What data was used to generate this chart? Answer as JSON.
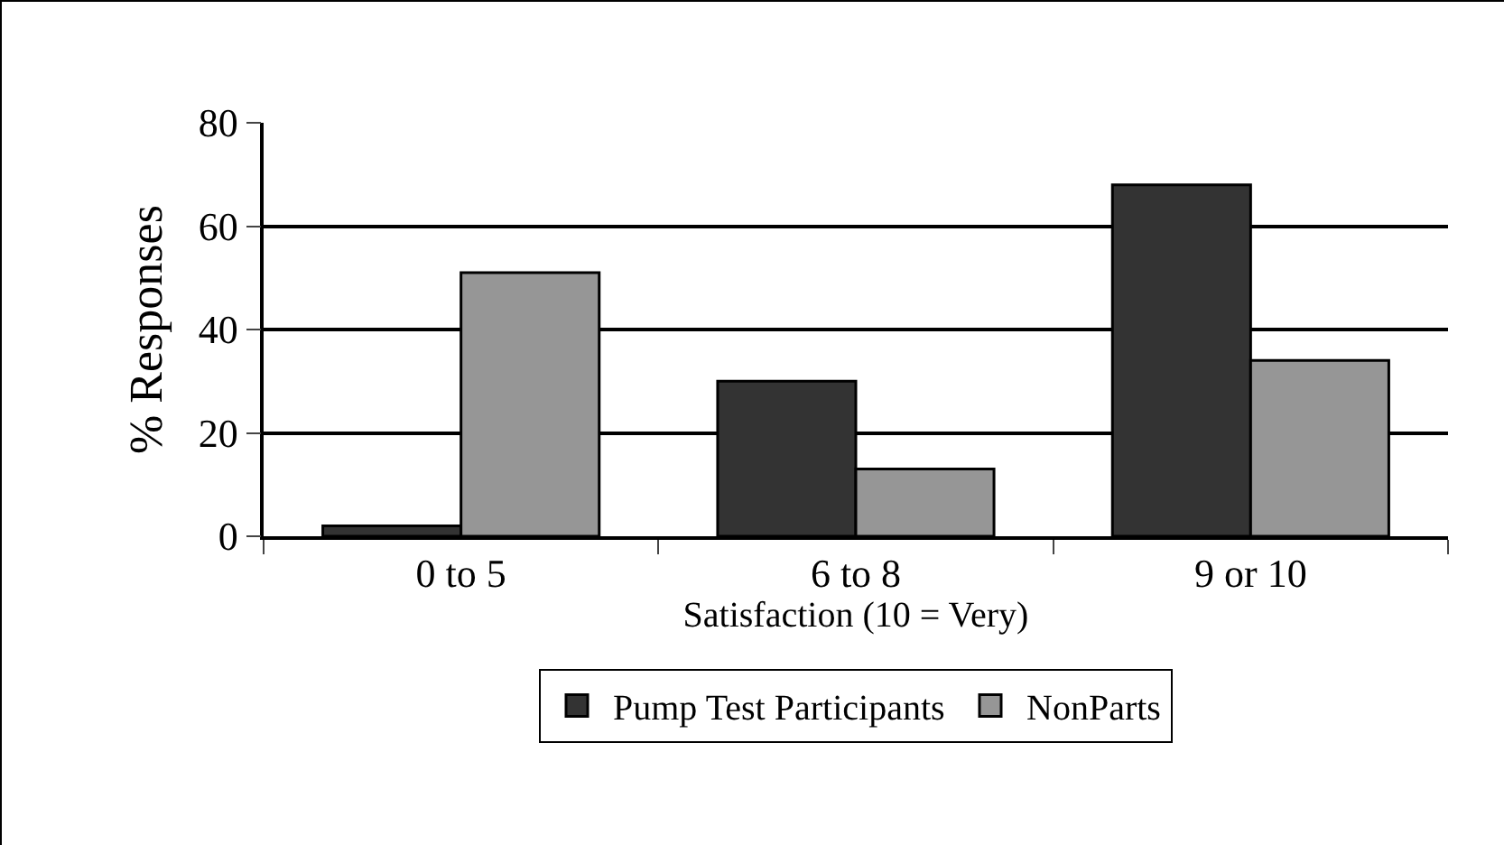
{
  "chart_data": {
    "type": "bar",
    "xlabel": "Satisfaction (10 = Very)",
    "ylabel": "% Responses",
    "categories": [
      "0 to 5",
      "6 to 8",
      "9 or 10"
    ],
    "series": [
      {
        "name": "Pump Test Participants",
        "color": "#333333",
        "values": [
          2,
          30,
          68
        ]
      },
      {
        "name": "NonParts",
        "color": "#969696",
        "values": [
          51,
          13,
          34
        ]
      }
    ],
    "ylim": [
      0,
      80
    ],
    "yticks": [
      0,
      20,
      40,
      60,
      80
    ],
    "grid": "y",
    "legend": "bottom"
  }
}
